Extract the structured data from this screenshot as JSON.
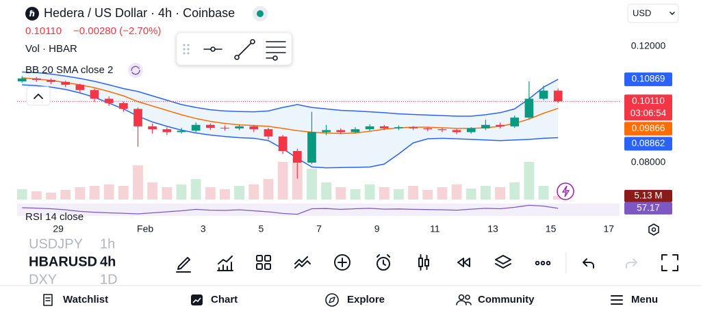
{
  "header": {
    "title": "Hedera / US Dollar · 4h · Coinbase",
    "price": "0.10110",
    "change": "−0.00280 (−2.70%)",
    "currency": "USD"
  },
  "indicators": {
    "volume": "Vol · HBAR",
    "bollinger": "BB 20 SMA close 2",
    "rsi": "RSI 14 close"
  },
  "chart_data": {
    "type": "candlestick",
    "x": [
      -1.25,
      -0.75,
      -0.25,
      0.25,
      0.75,
      1.25,
      1.75,
      2.25,
      2.75,
      3.25,
      3.75,
      4.25,
      4.75,
      5.25,
      5.75,
      6.25,
      6.75,
      7.25,
      7.75,
      8.25,
      8.75,
      9.25,
      9.75,
      10.25,
      10.75,
      11.25,
      11.75,
      12.25,
      12.75,
      13.25,
      13.75,
      14.25,
      14.75,
      15.25,
      15.75,
      16.25,
      16.75,
      17.25
    ],
    "open": [
      0.108,
      0.109,
      0.1085,
      0.1078,
      0.1068,
      0.105,
      0.102,
      0.1005,
      0.0985,
      0.0925,
      0.0915,
      0.0905,
      0.091,
      0.093,
      0.092,
      0.0918,
      0.0925,
      0.0915,
      0.089,
      0.084,
      0.08,
      0.0905,
      0.0912,
      0.0905,
      0.0915,
      0.0925,
      0.0918,
      0.0922,
      0.0918,
      0.0915,
      0.0912,
      0.0905,
      0.0918,
      0.093,
      0.0925,
      0.0955,
      0.102,
      0.1048
    ],
    "high": [
      0.1098,
      0.1095,
      0.109,
      0.1082,
      0.1072,
      0.1055,
      0.1028,
      0.101,
      0.099,
      0.0935,
      0.0922,
      0.092,
      0.0938,
      0.0935,
      0.0928,
      0.0932,
      0.093,
      0.092,
      0.0895,
      0.0848,
      0.0975,
      0.093,
      0.0918,
      0.0922,
      0.0932,
      0.093,
      0.0928,
      0.0926,
      0.0922,
      0.092,
      0.0916,
      0.0922,
      0.0948,
      0.0938,
      0.0962,
      0.108,
      0.1065,
      0.1055
    ],
    "low": [
      0.1075,
      0.1078,
      0.107,
      0.106,
      0.104,
      0.101,
      0.0995,
      0.0975,
      0.0855,
      0.09,
      0.0895,
      0.09,
      0.0905,
      0.0912,
      0.091,
      0.0912,
      0.0905,
      0.088,
      0.083,
      0.0745,
      0.0795,
      0.0895,
      0.0898,
      0.09,
      0.091,
      0.0912,
      0.0912,
      0.0912,
      0.0908,
      0.0905,
      0.0898,
      0.09,
      0.0912,
      0.0918,
      0.092,
      0.095,
      0.1015,
      0.1005
    ],
    "close": [
      0.109,
      0.1085,
      0.1078,
      0.1068,
      0.105,
      0.102,
      0.1005,
      0.0985,
      0.0925,
      0.0915,
      0.0905,
      0.091,
      0.093,
      0.092,
      0.0918,
      0.0925,
      0.0915,
      0.089,
      0.084,
      0.08,
      0.0905,
      0.0912,
      0.0905,
      0.0915,
      0.0925,
      0.0918,
      0.0922,
      0.0918,
      0.0915,
      0.0912,
      0.0905,
      0.0918,
      0.093,
      0.0925,
      0.0955,
      0.102,
      0.1048,
      0.1011
    ],
    "up_color": "#089981",
    "down_color": "#f23645",
    "bands": {
      "upper": [
        0.1112,
        0.111,
        0.1105,
        0.1098,
        0.109,
        0.108,
        0.1068,
        0.1055,
        0.1045,
        0.103,
        0.1015,
        0.1,
        0.099,
        0.0982,
        0.0978,
        0.0976,
        0.0975,
        0.0978,
        0.099,
        0.1,
        0.099,
        0.0985,
        0.098,
        0.0978,
        0.0975,
        0.0972,
        0.0968,
        0.0966,
        0.0964,
        0.0962,
        0.096,
        0.096,
        0.0965,
        0.0972,
        0.0985,
        0.102,
        0.106,
        0.1087
      ],
      "middle": [
        0.1092,
        0.1088,
        0.1083,
        0.1076,
        0.1068,
        0.1058,
        0.1045,
        0.103,
        0.101,
        0.0995,
        0.098,
        0.0965,
        0.0952,
        0.0942,
        0.0935,
        0.093,
        0.0928,
        0.0925,
        0.0918,
        0.091,
        0.0905,
        0.0902,
        0.09,
        0.0902,
        0.0908,
        0.0915,
        0.092,
        0.0922,
        0.0922,
        0.092,
        0.0918,
        0.0918,
        0.092,
        0.0925,
        0.0935,
        0.095,
        0.097,
        0.0987
      ],
      "lower": [
        0.1068,
        0.1065,
        0.106,
        0.1052,
        0.104,
        0.1025,
        0.1005,
        0.0985,
        0.096,
        0.094,
        0.0925,
        0.0912,
        0.0902,
        0.0895,
        0.089,
        0.0886,
        0.0884,
        0.0876,
        0.0848,
        0.0815,
        0.0785,
        0.0782,
        0.0783,
        0.0784,
        0.0785,
        0.0795,
        0.083,
        0.0868,
        0.0882,
        0.0884,
        0.0882,
        0.088,
        0.0878,
        0.0876,
        0.0878,
        0.088,
        0.0884,
        0.0886
      ],
      "band_color": "#2962ff",
      "middle_color": "#ff6d00",
      "fill_color": "#e8f2fb"
    },
    "volume": {
      "values": [
        15,
        12,
        10,
        14,
        18,
        20,
        22,
        20,
        50,
        25,
        18,
        22,
        30,
        18,
        15,
        20,
        22,
        30,
        55,
        60,
        45,
        25,
        18,
        15,
        22,
        18,
        15,
        20,
        14,
        18,
        22,
        16,
        20,
        18,
        25,
        55,
        20,
        5.13
      ],
      "ylim": [
        0,
        60
      ],
      "up_color": "#cdebd9",
      "down_color": "#f6d3d6"
    },
    "rsi": {
      "values": [
        60,
        58,
        55,
        50,
        42,
        38,
        35,
        33,
        30,
        35,
        40,
        45,
        52,
        48,
        47,
        50,
        45,
        40,
        32,
        28,
        55,
        56,
        52,
        55,
        57,
        53,
        54,
        52,
        51,
        50,
        48,
        53,
        57,
        55,
        62,
        72,
        68,
        57.17
      ],
      "ylim": [
        20,
        80
      ],
      "color": "#7e57c2"
    },
    "xlim": [
      -1.42,
      19.3
    ],
    "ylim": [
      0.0673,
      0.136
    ],
    "xticks": [
      {
        "value": 0,
        "label": "29"
      },
      {
        "value": 3,
        "label": "Feb"
      },
      {
        "value": 5,
        "label": "3"
      },
      {
        "value": 7,
        "label": "5"
      },
      {
        "value": 9,
        "label": "7"
      },
      {
        "value": 11,
        "label": "9"
      },
      {
        "value": 13,
        "label": "11"
      },
      {
        "value": 15,
        "label": "13"
      },
      {
        "value": 17,
        "label": "15"
      },
      {
        "value": 19,
        "label": "17"
      }
    ],
    "yticks": [
      {
        "value": 0.12,
        "label": "0.12000"
      },
      {
        "value": 0.08,
        "label": "0.08000"
      }
    ],
    "grid": false,
    "price_labels": [
      {
        "value": 0.10869,
        "label": "0.10869",
        "color": "#2962ff"
      },
      {
        "value": 0.1011,
        "label": "0.10110",
        "countdown": "03:06:54",
        "color": "#f23645"
      },
      {
        "value": 0.09866,
        "label": "0.09866",
        "color": "#ff6d00"
      },
      {
        "value": 0.08862,
        "label": "0.08862",
        "color": "#2962ff"
      }
    ],
    "volume_label": {
      "value": 5.13,
      "label": "5.13 M",
      "color": "#8b1a1a"
    },
    "rsi_label": {
      "value": 57.17,
      "label": "57.17",
      "color": "#7e57c2"
    }
  },
  "watchlist": [
    {
      "symbol": "USDJPY",
      "interval": "1h"
    },
    {
      "symbol": "HBARUSD",
      "interval": "4h"
    },
    {
      "symbol": "DXY",
      "interval": "1D"
    }
  ],
  "nav": [
    "Watchlist",
    "Chart",
    "Explore",
    "Community",
    "Menu"
  ]
}
